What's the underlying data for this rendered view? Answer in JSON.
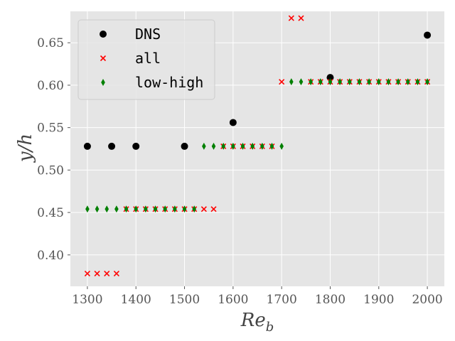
{
  "chart_data": {
    "type": "scatter",
    "title": "",
    "xlabel": "Re",
    "xlabel_sub": "b",
    "ylabel": "y/h",
    "xlim": [
      1265,
      2035
    ],
    "ylim": [
      0.363,
      0.687
    ],
    "xticks": [
      1300,
      1400,
      1500,
      1600,
      1700,
      1800,
      1900,
      2000
    ],
    "yticks": [
      0.4,
      0.45,
      0.5,
      0.55,
      0.6,
      0.65
    ],
    "xtick_labels": [
      "1300",
      "1400",
      "1500",
      "1600",
      "1700",
      "1800",
      "1900",
      "2000"
    ],
    "ytick_labels": [
      "0.40",
      "0.45",
      "0.50",
      "0.55",
      "0.60",
      "0.65"
    ],
    "grid": true,
    "background": "#e5e5e5",
    "legend_position": "top-left",
    "series": [
      {
        "name": "DNS",
        "marker": "circle",
        "color": "#000000",
        "points": [
          [
            1300,
            0.528
          ],
          [
            1350,
            0.528
          ],
          [
            1400,
            0.528
          ],
          [
            1500,
            0.528
          ],
          [
            1600,
            0.556
          ],
          [
            1800,
            0.609
          ],
          [
            2000,
            0.659
          ]
        ]
      },
      {
        "name": "all",
        "marker": "x",
        "color": "#ff0000",
        "points": [
          [
            1300,
            0.378
          ],
          [
            1320,
            0.378
          ],
          [
            1340,
            0.378
          ],
          [
            1360,
            0.378
          ],
          [
            1380,
            0.454
          ],
          [
            1400,
            0.454
          ],
          [
            1420,
            0.454
          ],
          [
            1440,
            0.454
          ],
          [
            1460,
            0.454
          ],
          [
            1480,
            0.454
          ],
          [
            1500,
            0.454
          ],
          [
            1520,
            0.454
          ],
          [
            1540,
            0.454
          ],
          [
            1560,
            0.454
          ],
          [
            1580,
            0.528
          ],
          [
            1600,
            0.528
          ],
          [
            1620,
            0.528
          ],
          [
            1640,
            0.528
          ],
          [
            1660,
            0.528
          ],
          [
            1680,
            0.528
          ],
          [
            1700,
            0.604
          ],
          [
            1720,
            0.679
          ],
          [
            1740,
            0.679
          ],
          [
            1760,
            0.604
          ],
          [
            1780,
            0.604
          ],
          [
            1800,
            0.604
          ],
          [
            1820,
            0.604
          ],
          [
            1840,
            0.604
          ],
          [
            1860,
            0.604
          ],
          [
            1880,
            0.604
          ],
          [
            1900,
            0.604
          ],
          [
            1920,
            0.604
          ],
          [
            1940,
            0.604
          ],
          [
            1960,
            0.604
          ],
          [
            1980,
            0.604
          ],
          [
            2000,
            0.604
          ]
        ]
      },
      {
        "name": "low-high",
        "marker": "diamond",
        "color": "#008000",
        "points": [
          [
            1300,
            0.454
          ],
          [
            1320,
            0.454
          ],
          [
            1340,
            0.454
          ],
          [
            1360,
            0.454
          ],
          [
            1380,
            0.454
          ],
          [
            1400,
            0.454
          ],
          [
            1420,
            0.454
          ],
          [
            1440,
            0.454
          ],
          [
            1460,
            0.454
          ],
          [
            1480,
            0.454
          ],
          [
            1500,
            0.454
          ],
          [
            1520,
            0.454
          ],
          [
            1540,
            0.528
          ],
          [
            1560,
            0.528
          ],
          [
            1580,
            0.528
          ],
          [
            1600,
            0.528
          ],
          [
            1620,
            0.528
          ],
          [
            1640,
            0.528
          ],
          [
            1660,
            0.528
          ],
          [
            1680,
            0.528
          ],
          [
            1700,
            0.528
          ],
          [
            1720,
            0.604
          ],
          [
            1740,
            0.604
          ],
          [
            1760,
            0.604
          ],
          [
            1780,
            0.604
          ],
          [
            1800,
            0.604
          ],
          [
            1820,
            0.604
          ],
          [
            1840,
            0.604
          ],
          [
            1860,
            0.604
          ],
          [
            1880,
            0.604
          ],
          [
            1900,
            0.604
          ],
          [
            1920,
            0.604
          ],
          [
            1940,
            0.604
          ],
          [
            1960,
            0.604
          ],
          [
            1980,
            0.604
          ],
          [
            2000,
            0.604
          ]
        ]
      }
    ]
  }
}
